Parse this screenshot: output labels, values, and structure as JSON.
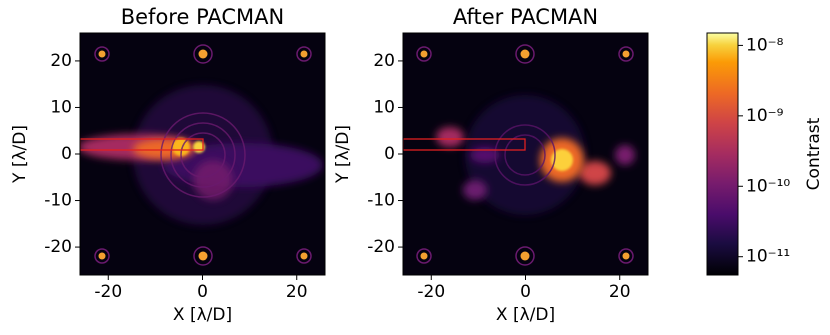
{
  "chart_data": [
    {
      "type": "heatmap",
      "title": "Before PACMAN",
      "xlabel": "X [λ/D]",
      "ylabel": "Y [λ/D]",
      "xlim": [
        -26,
        26
      ],
      "ylim": [
        -26,
        26
      ],
      "xticks": [
        -20,
        0,
        20
      ],
      "yticks": [
        -20,
        -10,
        0,
        10,
        20
      ]
    },
    {
      "type": "heatmap",
      "title": "After PACMAN",
      "xlabel": "X [λ/D]",
      "ylabel": "Y [λ/D]",
      "xlim": [
        -26,
        26
      ],
      "ylim": [
        -26,
        26
      ],
      "xticks": [
        -20,
        0,
        20
      ],
      "yticks": [
        -20,
        -10,
        0,
        10,
        20
      ]
    },
    {
      "type": "colorbar",
      "label": "Contrast",
      "log_scale": true,
      "colormap": "inferno",
      "clim": [
        5.5e-12,
        1.5e-08
      ],
      "ticks": [
        {
          "value": 1e-08,
          "label": "10⁻⁸"
        },
        {
          "value": 1e-09,
          "label": "10⁻⁹"
        },
        {
          "value": 1e-10,
          "label": "10⁻¹⁰"
        },
        {
          "value": 1e-11,
          "label": "10⁻¹¹"
        }
      ]
    }
  ]
}
